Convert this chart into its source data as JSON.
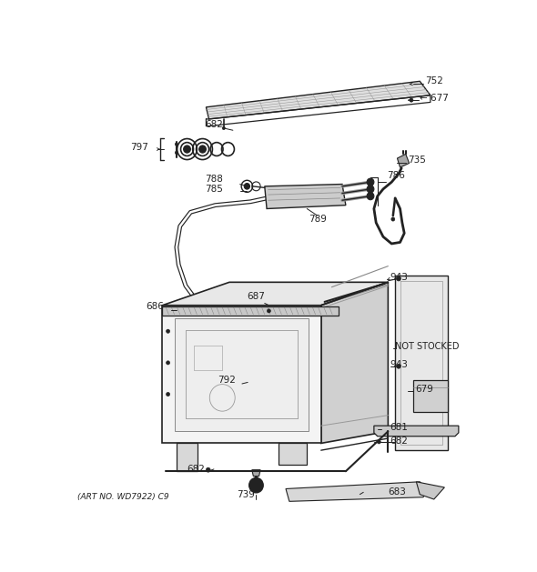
{
  "art_no": "(ART NO. WD7922) C9",
  "bg_color": "#ffffff",
  "lc": "#222222",
  "fig_width": 5.9,
  "fig_height": 6.29,
  "dpi": 100
}
